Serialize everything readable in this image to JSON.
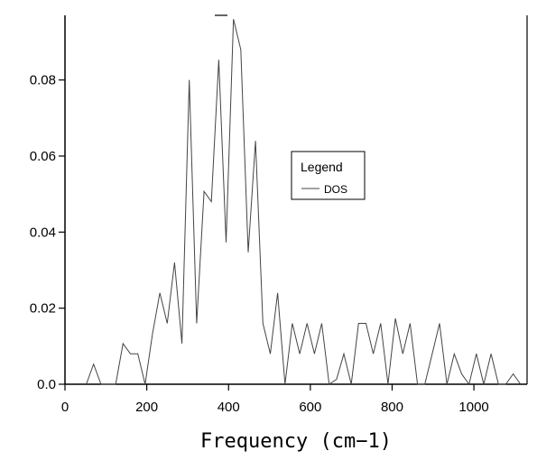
{
  "chart_data": {
    "type": "line",
    "title": "",
    "xlabel": "Frequency (cm−1)",
    "ylabel": "",
    "xlim": [
      0,
      1130
    ],
    "ylim": [
      0,
      0.097
    ],
    "x_ticks": [
      0,
      200,
      400,
      600,
      800,
      1000
    ],
    "x_tick_labels": [
      "0",
      "200",
      "400",
      "600",
      "800",
      "1000"
    ],
    "y_ticks": [
      0,
      0.02,
      0.04,
      0.06,
      0.08
    ],
    "y_tick_labels": [
      "0.0",
      "0.02",
      "0.04",
      "0.06",
      "0.08"
    ],
    "grid": false,
    "legend": {
      "title": "Legend",
      "placement": "right-center"
    },
    "series": [
      {
        "name": "DOS",
        "color": "#444444",
        "x": [
          52,
          70,
          88,
          106,
          124,
          142,
          160,
          178,
          196,
          214,
          232,
          250,
          268,
          286,
          304,
          322,
          340,
          358,
          376,
          394,
          412,
          430,
          448,
          466,
          484,
          502,
          520,
          538,
          556,
          574,
          592,
          610,
          628,
          646,
          664,
          682,
          700,
          718,
          736,
          754,
          772,
          790,
          808,
          826,
          844,
          862,
          880,
          898,
          916,
          934,
          952,
          970,
          988,
          1006,
          1024,
          1042,
          1060,
          1078,
          1096,
          1114
        ],
        "y": [
          0,
          0.0053,
          0,
          0,
          0,
          0.0107,
          0.008,
          0.008,
          0,
          0.0133,
          0.024,
          0.016,
          0.032,
          0.0107,
          0.08,
          0.016,
          0.0507,
          0.048,
          0.0853,
          0.0373,
          0.096,
          0.088,
          0.0347,
          0.064,
          0.016,
          0.008,
          0.024,
          0,
          0.016,
          0.008,
          0.016,
          0.008,
          0.016,
          0,
          0.0013,
          0.008,
          0,
          0.016,
          0.016,
          0.008,
          0.016,
          0,
          0.0173,
          0.008,
          0.016,
          0,
          0,
          0.008,
          0.016,
          0,
          0.008,
          0.0027,
          0,
          0.008,
          0,
          0.008,
          0,
          0,
          0.0027,
          0
        ]
      }
    ]
  }
}
